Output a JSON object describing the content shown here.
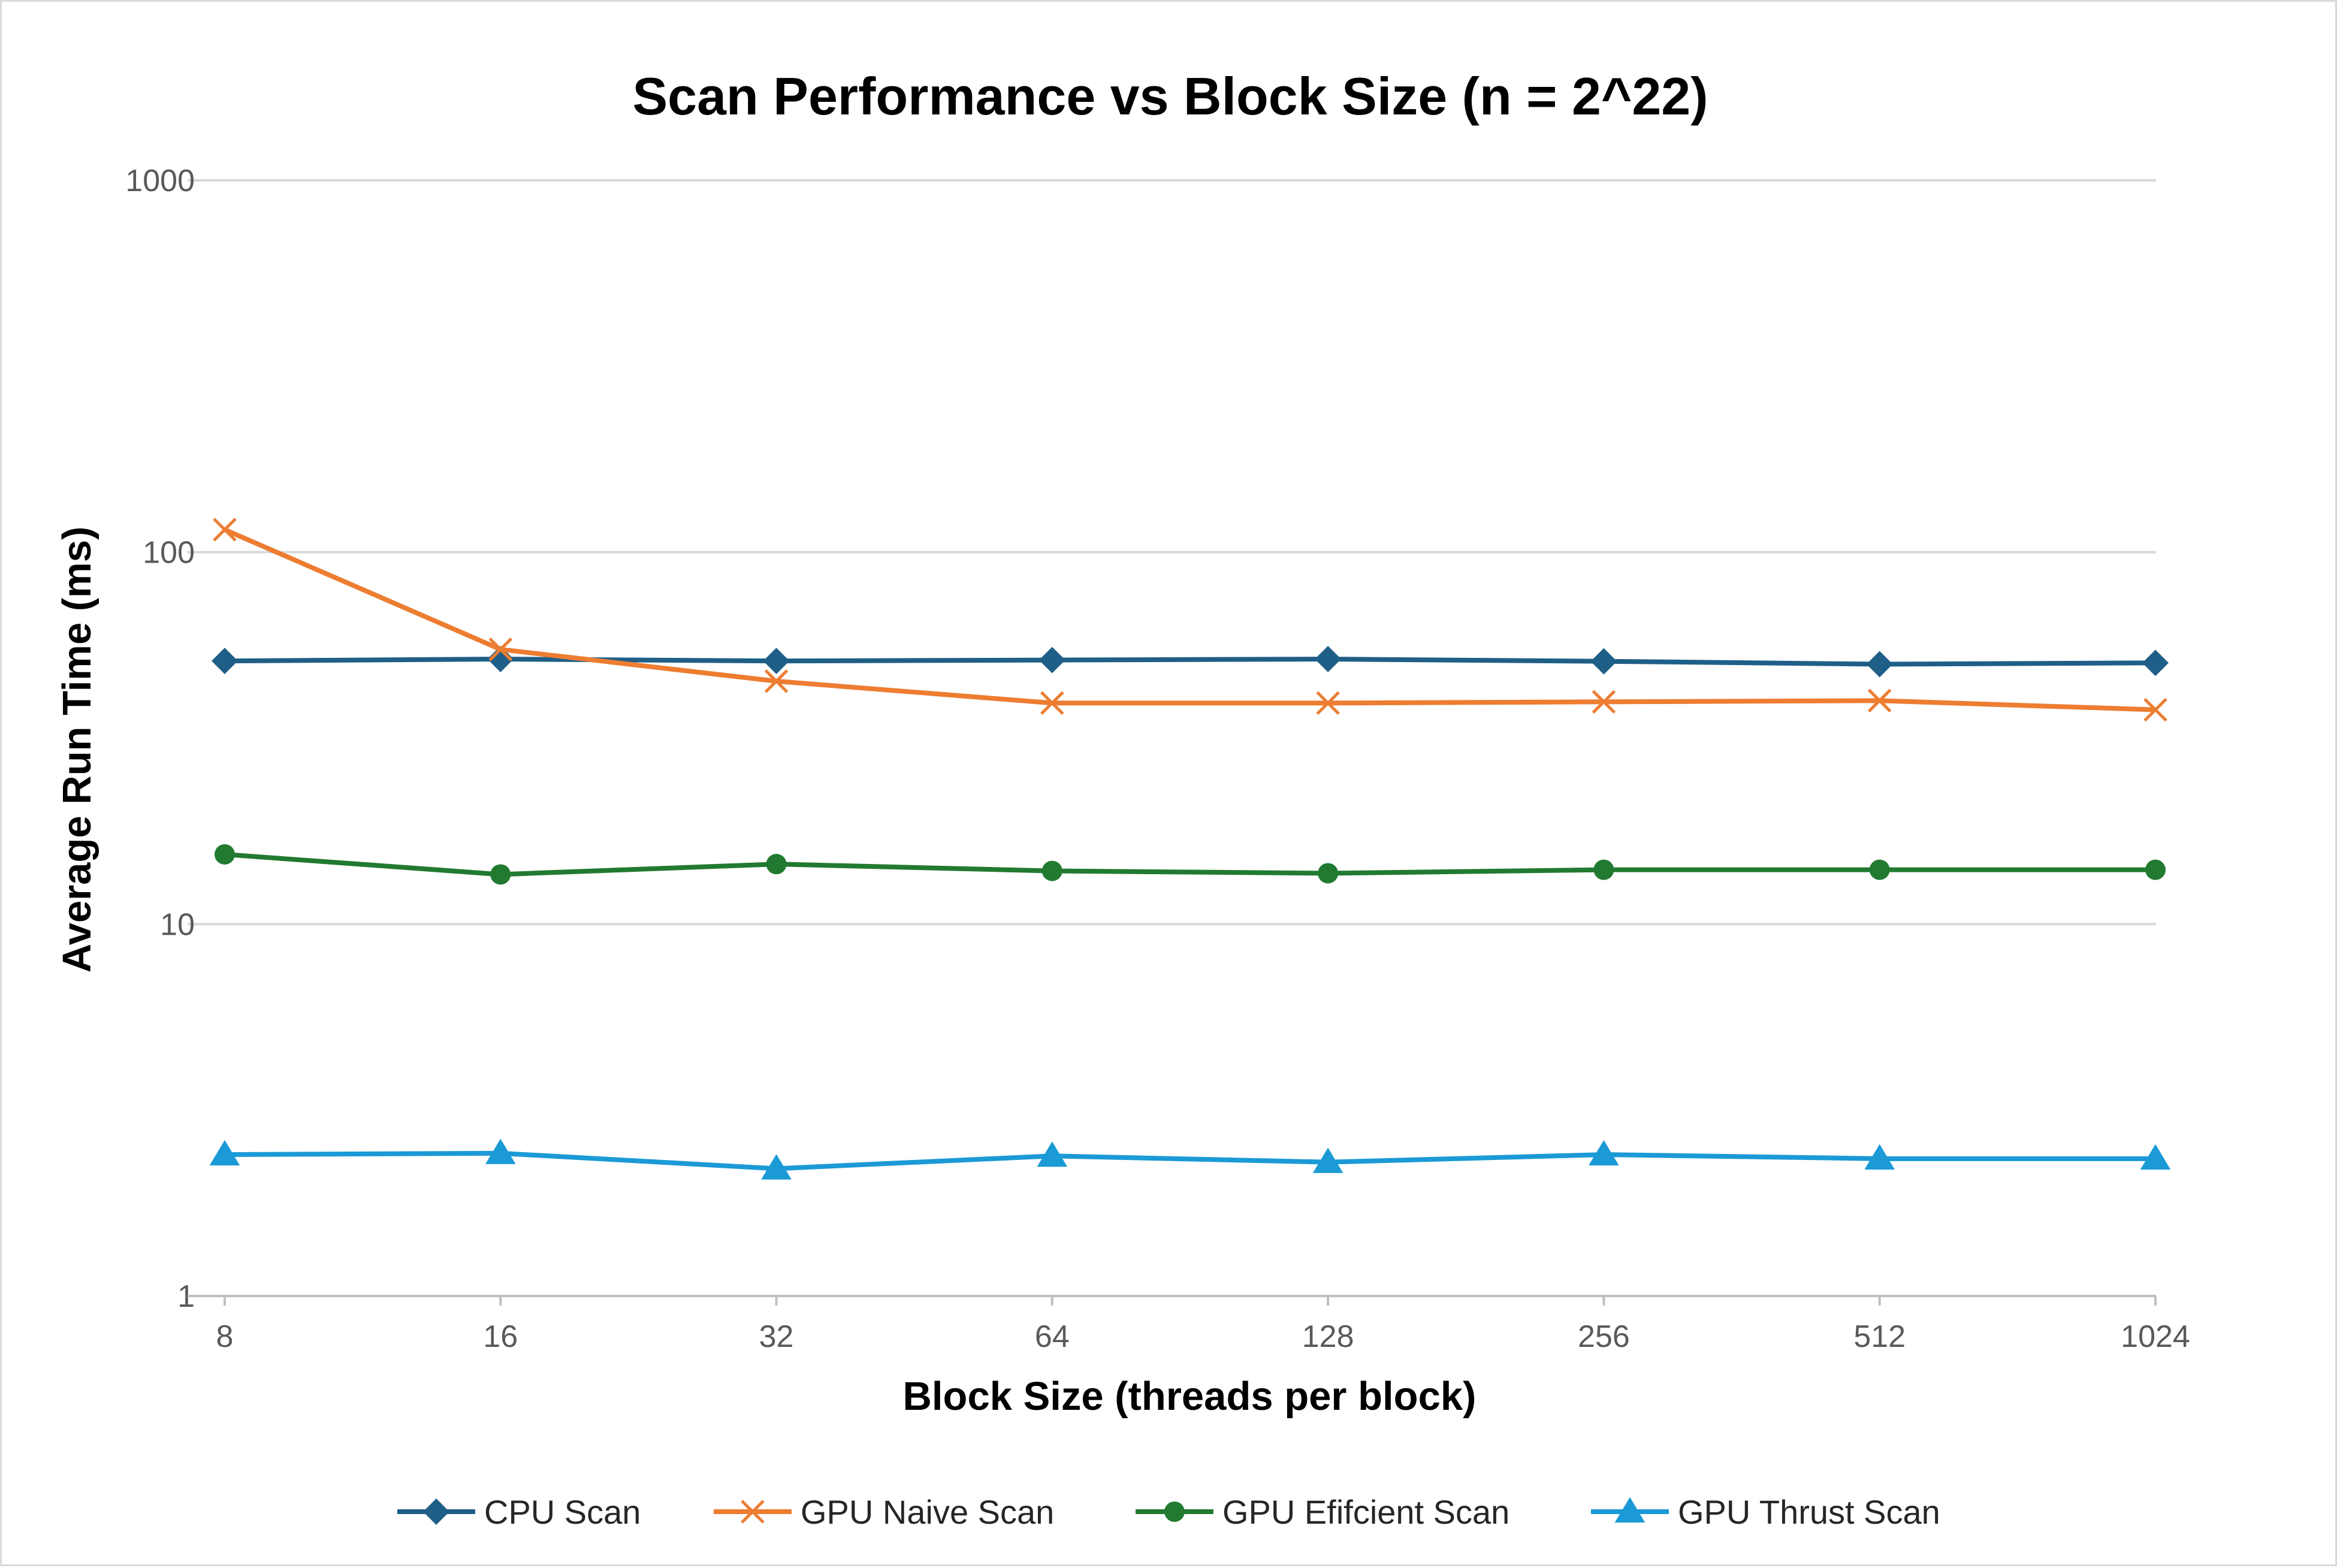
{
  "chart_data": {
    "type": "line",
    "title": "Scan Performance vs Block Size (n = 2^22)",
    "xlabel": "Block Size (threads per block)",
    "ylabel": "Average Run Time (ms)",
    "categories": [
      "8",
      "16",
      "32",
      "64",
      "128",
      "256",
      "512",
      "1024"
    ],
    "yscale": "log",
    "ylim": [
      1,
      1000
    ],
    "yticks": [
      "1",
      "10",
      "100",
      "1000"
    ],
    "grid": true,
    "legend_position": "bottom",
    "series": [
      {
        "name": "CPU Scan",
        "color": "#1f5f87",
        "marker": "diamond",
        "values": [
          51.0,
          51.6,
          51.0,
          51.3,
          51.6,
          50.9,
          50.0,
          50.4
        ]
      },
      {
        "name": "GPU Naive Scan",
        "color": "#ed7d31",
        "marker": "x",
        "values": [
          115.0,
          54.8,
          45.0,
          39.3,
          39.3,
          39.6,
          39.9,
          37.7
        ]
      },
      {
        "name": "GPU Efifcient Scan",
        "color": "#217a30",
        "marker": "circle",
        "values": [
          15.4,
          13.6,
          14.5,
          13.9,
          13.7,
          14.0,
          14.0,
          14.0
        ]
      },
      {
        "name": "GPU Thrust Scan",
        "color": "#1b9ad6",
        "marker": "triangle",
        "values": [
          2.4,
          2.42,
          2.2,
          2.38,
          2.29,
          2.4,
          2.34,
          2.34
        ]
      }
    ]
  }
}
